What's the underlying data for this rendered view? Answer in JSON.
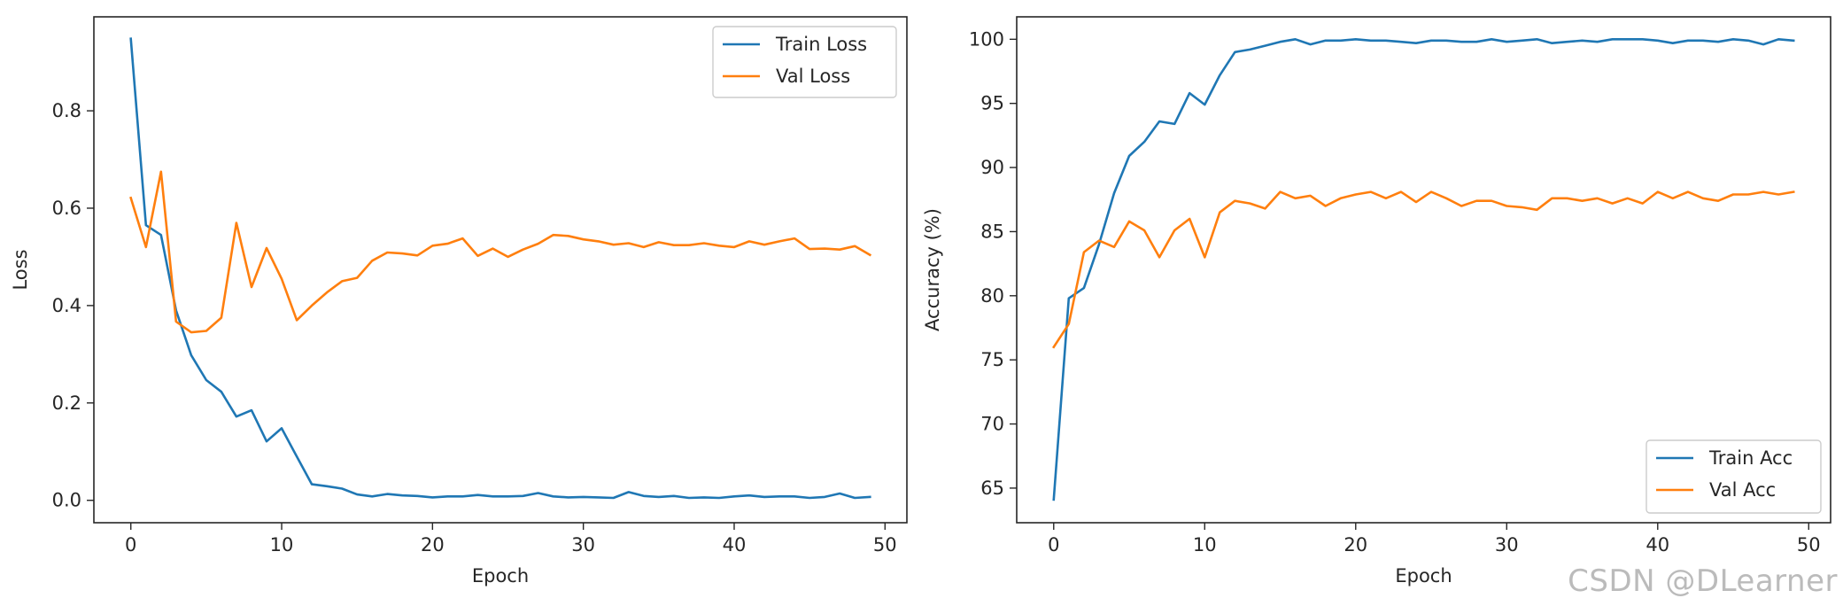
{
  "watermark": "CSDN @DLearner",
  "colors": {
    "train": "#1f77b4",
    "val": "#ff7f0e",
    "axis": "#262626"
  },
  "chart_data": [
    {
      "type": "line",
      "title": "",
      "xlabel": "Epoch",
      "ylabel": "Loss",
      "xlim": [
        -2.45,
        51.45
      ],
      "ylim": [
        -0.046,
        0.993
      ],
      "xticks": [
        0,
        10,
        20,
        30,
        40,
        50
      ],
      "yticks": [
        0.0,
        0.2,
        0.4,
        0.6,
        0.8
      ],
      "ytick_labels": [
        "0.0",
        "0.2",
        "0.4",
        "0.6",
        "0.8"
      ],
      "grid": false,
      "legend_placement": "upper right",
      "x": [
        0,
        1,
        2,
        3,
        4,
        5,
        6,
        7,
        8,
        9,
        10,
        11,
        12,
        13,
        14,
        15,
        16,
        17,
        18,
        19,
        20,
        21,
        22,
        23,
        24,
        25,
        26,
        27,
        28,
        29,
        30,
        31,
        32,
        33,
        34,
        35,
        36,
        37,
        38,
        39,
        40,
        41,
        42,
        43,
        44,
        45,
        46,
        47,
        48,
        49
      ],
      "series": [
        {
          "name": "Train Loss",
          "color": "#1f77b4",
          "values": [
            0.948,
            0.565,
            0.545,
            0.39,
            0.298,
            0.247,
            0.223,
            0.172,
            0.185,
            0.121,
            0.148,
            0.09,
            0.033,
            0.029,
            0.024,
            0.012,
            0.008,
            0.013,
            0.01,
            0.009,
            0.006,
            0.008,
            0.008,
            0.011,
            0.008,
            0.008,
            0.009,
            0.015,
            0.008,
            0.006,
            0.007,
            0.006,
            0.005,
            0.017,
            0.009,
            0.007,
            0.009,
            0.005,
            0.006,
            0.005,
            0.008,
            0.01,
            0.007,
            0.008,
            0.008,
            0.005,
            0.007,
            0.014,
            0.005,
            0.007
          ]
        },
        {
          "name": "Val Loss",
          "color": "#ff7f0e",
          "values": [
            0.621,
            0.52,
            0.675,
            0.367,
            0.345,
            0.348,
            0.375,
            0.57,
            0.438,
            0.518,
            0.455,
            0.37,
            0.4,
            0.427,
            0.45,
            0.457,
            0.492,
            0.509,
            0.507,
            0.503,
            0.523,
            0.527,
            0.538,
            0.502,
            0.517,
            0.5,
            0.515,
            0.527,
            0.545,
            0.543,
            0.536,
            0.532,
            0.525,
            0.528,
            0.52,
            0.53,
            0.524,
            0.524,
            0.528,
            0.523,
            0.52,
            0.532,
            0.525,
            0.532,
            0.538,
            0.516,
            0.517,
            0.515,
            0.522,
            0.504
          ]
        }
      ]
    },
    {
      "type": "line",
      "title": "",
      "xlabel": "Epoch",
      "ylabel": "Accuracy (%)",
      "xlim": [
        -2.45,
        51.45
      ],
      "ylim": [
        62.3,
        101.75
      ],
      "xticks": [
        0,
        10,
        20,
        30,
        40,
        50
      ],
      "yticks": [
        65,
        70,
        75,
        80,
        85,
        90,
        95,
        100
      ],
      "ytick_labels": [
        "65",
        "70",
        "75",
        "80",
        "85",
        "90",
        "95",
        "100"
      ],
      "grid": false,
      "legend_placement": "lower right",
      "x": [
        0,
        1,
        2,
        3,
        4,
        5,
        6,
        7,
        8,
        9,
        10,
        11,
        12,
        13,
        14,
        15,
        16,
        17,
        18,
        19,
        20,
        21,
        22,
        23,
        24,
        25,
        26,
        27,
        28,
        29,
        30,
        31,
        32,
        33,
        34,
        35,
        36,
        37,
        38,
        39,
        40,
        41,
        42,
        43,
        44,
        45,
        46,
        47,
        48,
        49
      ],
      "series": [
        {
          "name": "Train Acc",
          "color": "#1f77b4",
          "values": [
            64.1,
            79.8,
            80.6,
            84.0,
            88.0,
            90.9,
            92.0,
            93.6,
            93.4,
            95.8,
            94.9,
            97.2,
            99.0,
            99.2,
            99.5,
            99.8,
            100.0,
            99.6,
            99.9,
            99.9,
            100.0,
            99.9,
            99.9,
            99.8,
            99.7,
            99.9,
            99.9,
            99.8,
            99.8,
            100.0,
            99.8,
            99.9,
            100.0,
            99.7,
            99.8,
            99.9,
            99.8,
            100.0,
            100.0,
            100.0,
            99.9,
            99.7,
            99.9,
            99.9,
            99.8,
            100.0,
            99.9,
            99.6,
            100.0,
            99.9
          ]
        },
        {
          "name": "Val Acc",
          "color": "#ff7f0e",
          "values": [
            76.0,
            77.8,
            83.4,
            84.3,
            83.8,
            85.8,
            85.1,
            83.0,
            85.1,
            86.0,
            83.0,
            86.5,
            87.4,
            87.2,
            86.8,
            88.1,
            87.6,
            87.8,
            87.0,
            87.6,
            87.9,
            88.1,
            87.6,
            88.1,
            87.3,
            88.1,
            87.6,
            87.0,
            87.4,
            87.4,
            87.0,
            86.9,
            86.7,
            87.6,
            87.6,
            87.4,
            87.6,
            87.2,
            87.6,
            87.2,
            88.1,
            87.6,
            88.1,
            87.6,
            87.4,
            87.9,
            87.9,
            88.1,
            87.9,
            88.1
          ]
        }
      ]
    }
  ]
}
